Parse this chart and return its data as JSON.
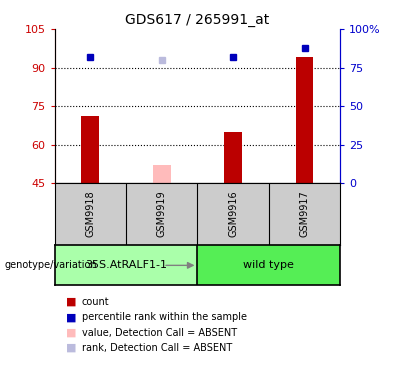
{
  "title": "GDS617 / 265991_at",
  "samples": [
    "GSM9918",
    "GSM9919",
    "GSM9916",
    "GSM9917"
  ],
  "bar_values": [
    71,
    null,
    65,
    94
  ],
  "bar_absent_values": [
    null,
    52,
    null,
    null
  ],
  "bar_color": "#bb0000",
  "bar_absent_color": "#ffbbbb",
  "rank_values": [
    82,
    null,
    82,
    88
  ],
  "rank_absent_values": [
    null,
    80,
    null,
    null
  ],
  "rank_color": "#0000bb",
  "rank_absent_color": "#bbbbdd",
  "ylim_left": [
    45,
    105
  ],
  "ylim_right": [
    0,
    100
  ],
  "yticks_left": [
    45,
    60,
    75,
    90,
    105
  ],
  "yticks_right": [
    0,
    25,
    50,
    75,
    100
  ],
  "ytick_labels_left": [
    "45",
    "60",
    "75",
    "90",
    "105"
  ],
  "ytick_labels_right": [
    "0",
    "25",
    "50",
    "75",
    "100%"
  ],
  "hlines": [
    60,
    75,
    90
  ],
  "bar_width": 0.25,
  "x_positions": [
    1,
    2,
    3,
    4
  ],
  "background_color": "#ffffff",
  "axis_color_left": "#cc0000",
  "axis_color_right": "#0000cc",
  "group1_label": "35S.AtRALF1-1",
  "group2_label": "wild type",
  "group1_color": "#aaffaa",
  "group2_color": "#55ee55",
  "legend_items": [
    {
      "label": "count",
      "color": "#bb0000"
    },
    {
      "label": "percentile rank within the sample",
      "color": "#0000bb"
    },
    {
      "label": "value, Detection Call = ABSENT",
      "color": "#ffbbbb"
    },
    {
      "label": "rank, Detection Call = ABSENT",
      "color": "#bbbbdd"
    }
  ]
}
